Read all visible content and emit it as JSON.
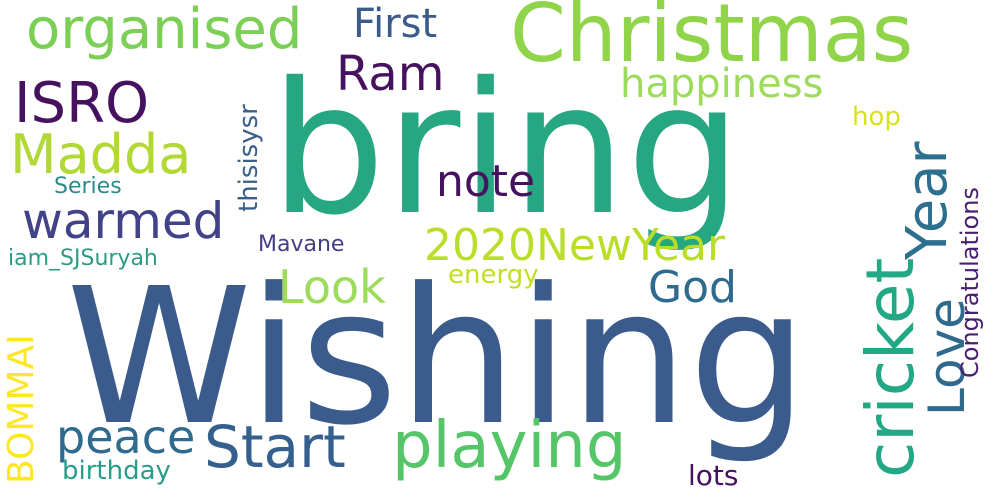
{
  "words": [
    {
      "id": "wishing",
      "text": "Wishing",
      "color": "#3b5b8c"
    },
    {
      "id": "bring",
      "text": "bring",
      "color": "#26a681"
    },
    {
      "id": "christmas",
      "text": "Christmas",
      "color": "#8fd449"
    },
    {
      "id": "organised",
      "text": "organised",
      "color": "#7ccf55"
    },
    {
      "id": "first",
      "text": "First",
      "color": "#3c5a8a"
    },
    {
      "id": "ram",
      "text": "Ram",
      "color": "#46125f"
    },
    {
      "id": "happiness",
      "text": "happiness",
      "color": "#9ddb5a"
    },
    {
      "id": "isro",
      "text": "ISRO",
      "color": "#46125f"
    },
    {
      "id": "madda",
      "text": "Madda",
      "color": "#b1d835"
    },
    {
      "id": "warmed",
      "text": "warmed",
      "color": "#414287"
    },
    {
      "id": "series",
      "text": "Series",
      "color": "#2a8a8a"
    },
    {
      "id": "iam_sjsuryah",
      "text": "iam_SJSuryah",
      "color": "#2d9a86"
    },
    {
      "id": "thisisysr",
      "text": "thisisysr",
      "color": "#3a5f88"
    },
    {
      "id": "note",
      "text": "note",
      "color": "#46125f"
    },
    {
      "id": "newyear2020",
      "text": "2020NewYear",
      "color": "#bade28"
    },
    {
      "id": "mavane",
      "text": "Mavane",
      "color": "#433d84"
    },
    {
      "id": "look",
      "text": "Look",
      "color": "#9ddb5a"
    },
    {
      "id": "energy",
      "text": "energy",
      "color": "#c2df23"
    },
    {
      "id": "god",
      "text": "God",
      "color": "#2e6b8e"
    },
    {
      "id": "year",
      "text": "Year",
      "color": "#2d6f8e"
    },
    {
      "id": "hop",
      "text": "hop",
      "color": "#d8e219"
    },
    {
      "id": "cricket",
      "text": "cricket",
      "color": "#22a884"
    },
    {
      "id": "love",
      "text": "Love",
      "color": "#2f6a8d"
    },
    {
      "id": "congratulations",
      "text": "Congratulations",
      "color": "#481f70"
    },
    {
      "id": "peace",
      "text": "peace",
      "color": "#2e6b8e"
    },
    {
      "id": "start",
      "text": "Start",
      "color": "#35608d"
    },
    {
      "id": "playing",
      "text": "playing",
      "color": "#55c667"
    },
    {
      "id": "bommai",
      "text": "BOMMAI",
      "color": "#fde725"
    },
    {
      "id": "birthday",
      "text": "birthday",
      "color": "#2a9d8a"
    },
    {
      "id": "lots",
      "text": "lots",
      "color": "#471164"
    }
  ]
}
